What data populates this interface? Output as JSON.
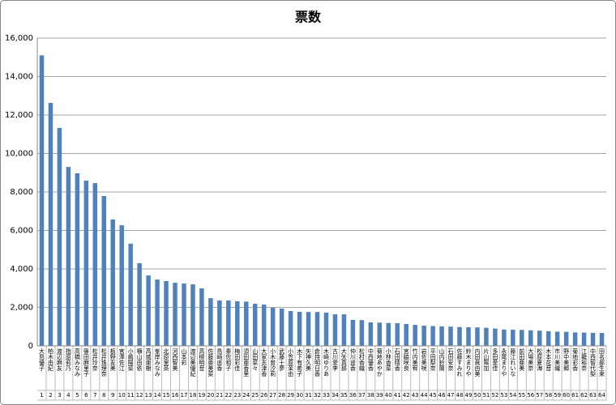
{
  "chart_data": {
    "type": "bar",
    "title": "票数",
    "categories": [
      "大島優子",
      "柏木由紀",
      "渡辺麻友",
      "指原莉乃",
      "高橋みなみ",
      "篠田麻里子",
      "松井玲奈",
      "松井珠理奈",
      "板野友美",
      "宮澤佐江",
      "小嶋陽菜",
      "横山由依",
      "高城亜樹",
      "峯岸みなみ",
      "北原里英",
      "河西智美",
      "山本彩",
      "渡辺美優紀",
      "高柳明音",
      "佐藤亜美菜",
      "島崎遥香",
      "秦佐和子",
      "梅田彩佳",
      "須田亜香里",
      "山田菜々",
      "大家志津香",
      "小木曽汐莉",
      "武藤十夢",
      "小笠原茉由",
      "木下有希子",
      "矢神久美",
      "倉持明日香",
      "木崎ゆりあ",
      "古川愛李",
      "大矢真那",
      "仲川遥香",
      "松村香織",
      "中西優香",
      "菊地あやか",
      "小林香菜",
      "石田晴香",
      "宮脇咲良",
      "竹内美宥",
      "岩佐美咲",
      "平田梨奈",
      "山内鈴蘭",
      "石田安奈",
      "佐藤すみれ",
      "鈴木まりや",
      "内田眞由美",
      "片山陽加",
      "多田愛佳",
      "永尾まりや",
      "藤江れいな",
      "前田亜美",
      "大場美奈",
      "松原夏海",
      "木本花音",
      "市川美織",
      "野中美郷",
      "菊地彩香",
      "江籠裕奈",
      "中西智代梨",
      "田名部生来"
    ],
    "ranks": [
      1,
      2,
      3,
      4,
      5,
      6,
      7,
      8,
      9,
      10,
      11,
      12,
      13,
      14,
      15,
      16,
      17,
      18,
      19,
      20,
      21,
      22,
      23,
      24,
      25,
      26,
      27,
      28,
      29,
      30,
      31,
      32,
      33,
      34,
      35,
      36,
      37,
      38,
      39,
      40,
      41,
      42,
      43,
      44,
      45,
      46,
      47,
      48,
      49,
      50,
      51,
      52,
      53,
      54,
      55,
      56,
      57,
      58,
      59,
      60,
      61,
      62,
      63,
      64
    ],
    "values": [
      15100,
      12630,
      11330,
      9300,
      8970,
      8590,
      8460,
      7790,
      6570,
      6270,
      5310,
      4300,
      3660,
      3450,
      3370,
      3280,
      3240,
      3200,
      2990,
      2480,
      2360,
      2360,
      2320,
      2300,
      2190,
      2150,
      1980,
      1940,
      1810,
      1770,
      1760,
      1760,
      1730,
      1640,
      1640,
      1350,
      1340,
      1220,
      1210,
      1190,
      1180,
      1140,
      1090,
      1050,
      1030,
      1010,
      1000,
      980,
      970,
      960,
      940,
      900,
      850,
      840,
      830,
      810,
      790,
      760,
      740,
      730,
      700,
      690,
      680,
      670
    ],
    "color": "#4f81bd",
    "ylim": [
      0,
      16000
    ],
    "yticks": [
      0,
      {
        "value": 2000,
        "label": "2,000"
      },
      {
        "value": 4000,
        "label": "4,000"
      },
      {
        "value": 6000,
        "label": "6,000"
      },
      {
        "value": 8000,
        "label": "8,000"
      },
      {
        "value": 10000,
        "label": "10,000"
      },
      {
        "value": 12000,
        "label": "12,000"
      },
      {
        "value": 14000,
        "label": "14,000"
      },
      {
        "value": 16000,
        "label": "16,000"
      }
    ],
    "grid": true
  }
}
